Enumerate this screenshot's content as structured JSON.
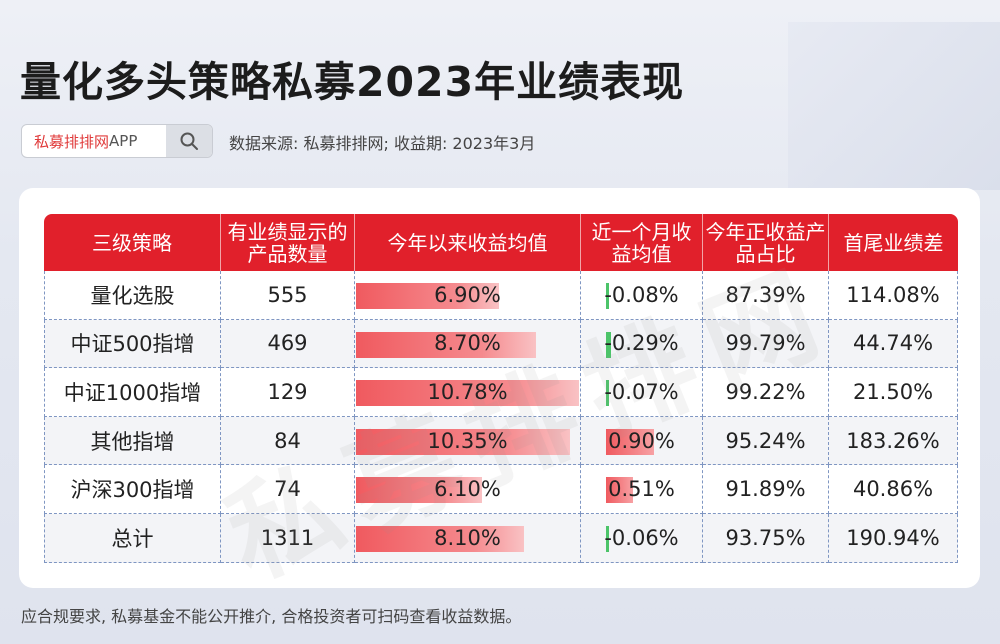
{
  "title": "量化多头策略私募2023年业绩表现",
  "search": {
    "brand": "私募排排网",
    "suffix": "APP"
  },
  "source": "数据来源: 私募排排网; 收益期: 2023年3月",
  "watermark": "私募排排网",
  "footer": "应合规要求, 私募基金不能公开推介, 合格投资者可扫码查看收益数据。",
  "chart_data": {
    "type": "table",
    "columns": [
      "三级策略",
      "有业绩显示的产品数量",
      "今年以来收益均值",
      "近一个月收益均值",
      "今年正收益产品占比",
      "首尾业绩差"
    ],
    "rows": [
      {
        "strategy": "量化选股",
        "count": "555",
        "ytd": "6.90%",
        "ytd_value": 6.9,
        "month": "-0.08%",
        "month_value": -0.08,
        "positive": "87.39%",
        "spread": "114.08%"
      },
      {
        "strategy": "中证500指增",
        "count": "469",
        "ytd": "8.70%",
        "ytd_value": 8.7,
        "month": "-0.29%",
        "month_value": -0.29,
        "positive": "99.79%",
        "spread": "44.74%"
      },
      {
        "strategy": "中证1000指增",
        "count": "129",
        "ytd": "10.78%",
        "ytd_value": 10.78,
        "month": "-0.07%",
        "month_value": -0.07,
        "positive": "99.22%",
        "spread": "21.50%"
      },
      {
        "strategy": "其他指增",
        "count": "84",
        "ytd": "10.35%",
        "ytd_value": 10.35,
        "month": "0.90%",
        "month_value": 0.9,
        "positive": "95.24%",
        "spread": "183.26%"
      },
      {
        "strategy": "沪深300指增",
        "count": "74",
        "ytd": "6.10%",
        "ytd_value": 6.1,
        "month": "0.51%",
        "month_value": 0.51,
        "positive": "91.89%",
        "spread": "40.86%"
      },
      {
        "strategy": "总计",
        "count": "1311",
        "ytd": "8.10%",
        "ytd_value": 8.1,
        "month": "-0.06%",
        "month_value": -0.06,
        "positive": "93.75%",
        "spread": "190.94%"
      }
    ],
    "colors": {
      "header": "#e1202b",
      "bar": "#f05a5f",
      "negative_bar": "#4cc469"
    }
  }
}
